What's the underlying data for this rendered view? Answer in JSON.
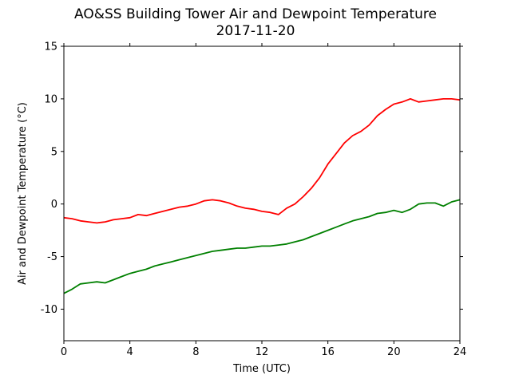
{
  "chart_data": {
    "type": "line",
    "title": "AO&SS Building Tower Air and Dewpoint Temperature",
    "subtitle": "2017-11-20",
    "xlabel": "Time (UTC)",
    "ylabel": "Air and Dewpoint Temperature (°C)",
    "xlim": [
      0,
      24
    ],
    "ylim": [
      -13,
      15
    ],
    "xticks": [
      0,
      4,
      8,
      12,
      16,
      20,
      24
    ],
    "yticks": [
      -10,
      -5,
      0,
      5,
      10,
      15
    ],
    "grid": false,
    "legend": "none",
    "series": [
      {
        "color": "#ff0000",
        "x": [
          0,
          0.5,
          1,
          1.5,
          2,
          2.5,
          3,
          3.5,
          4,
          4.5,
          5,
          5.5,
          6,
          6.5,
          7,
          7.5,
          8,
          8.5,
          9,
          9.5,
          10,
          10.5,
          11,
          11.5,
          12,
          12.5,
          13,
          13.5,
          14,
          14.5,
          15,
          15.5,
          16,
          16.5,
          17,
          17.5,
          18,
          18.5,
          19,
          19.5,
          20,
          20.5,
          21,
          21.5,
          22,
          22.5,
          23,
          23.5,
          24
        ],
        "y": [
          -1.3,
          -1.4,
          -1.6,
          -1.7,
          -1.8,
          -1.7,
          -1.5,
          -1.4,
          -1.3,
          -1.0,
          -1.1,
          -0.9,
          -0.7,
          -0.5,
          -0.3,
          -0.2,
          0.0,
          0.3,
          0.4,
          0.3,
          0.1,
          -0.2,
          -0.4,
          -0.5,
          -0.7,
          -0.8,
          -1.0,
          -0.4,
          0.0,
          0.7,
          1.5,
          2.5,
          3.8,
          4.8,
          5.8,
          6.5,
          6.9,
          7.5,
          8.4,
          9.0,
          9.5,
          9.7,
          10.0,
          9.7,
          9.8,
          9.9,
          10.0,
          10.0,
          9.9
        ]
      },
      {
        "color": "#008000",
        "x": [
          0,
          0.5,
          1,
          1.5,
          2,
          2.5,
          3,
          3.5,
          4,
          4.5,
          5,
          5.5,
          6,
          6.5,
          7,
          7.5,
          8,
          8.5,
          9,
          9.5,
          10,
          10.5,
          11,
          11.5,
          12,
          12.5,
          13,
          13.5,
          14,
          14.5,
          15,
          15.5,
          16,
          16.5,
          17,
          17.5,
          18,
          18.5,
          19,
          19.5,
          20,
          20.5,
          21,
          21.5,
          22,
          22.5,
          23,
          23.5,
          24
        ],
        "y": [
          -8.5,
          -8.1,
          -7.6,
          -7.5,
          -7.4,
          -7.5,
          -7.2,
          -6.9,
          -6.6,
          -6.4,
          -6.2,
          -5.9,
          -5.7,
          -5.5,
          -5.3,
          -5.1,
          -4.9,
          -4.7,
          -4.5,
          -4.4,
          -4.3,
          -4.2,
          -4.2,
          -4.1,
          -4.0,
          -4.0,
          -3.9,
          -3.8,
          -3.6,
          -3.4,
          -3.1,
          -2.8,
          -2.5,
          -2.2,
          -1.9,
          -1.6,
          -1.4,
          -1.2,
          -0.9,
          -0.8,
          -0.6,
          -0.8,
          -0.5,
          0.0,
          0.1,
          0.1,
          -0.2,
          0.2,
          0.4
        ]
      }
    ]
  }
}
